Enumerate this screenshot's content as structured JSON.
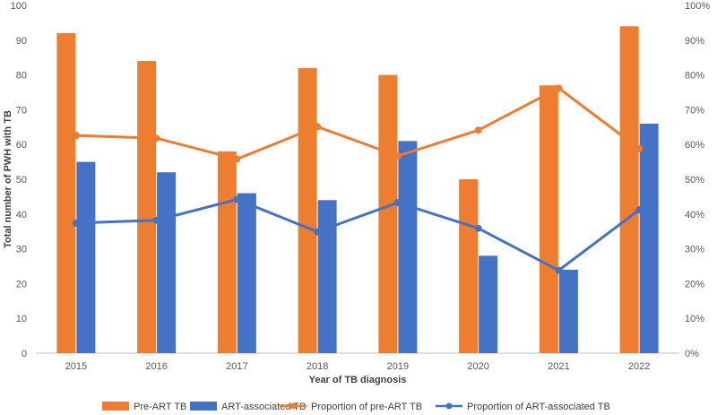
{
  "chart_data": {
    "type": "bar",
    "categories": [
      "2015",
      "2016",
      "2017",
      "2018",
      "2019",
      "2020",
      "2021",
      "2022"
    ],
    "series": [
      {
        "name": "Pre-ART TB",
        "type": "bar",
        "axis": "left",
        "color": "#ED7D31",
        "values": [
          92,
          84,
          58,
          82,
          80,
          50,
          77,
          94
        ]
      },
      {
        "name": "ART-associated TB",
        "type": "bar",
        "axis": "left",
        "color": "#4472C4",
        "values": [
          55,
          52,
          46,
          44,
          61,
          28,
          24,
          66
        ]
      },
      {
        "name": "Proportion of pre-ART TB",
        "type": "line",
        "axis": "right",
        "color": "#ED7D31",
        "values": [
          62.6,
          61.8,
          55.8,
          65.1,
          56.7,
          64.1,
          76.2,
          58.8
        ]
      },
      {
        "name": "Proportion of ART-associated TB",
        "type": "line",
        "axis": "right",
        "color": "#4472C4",
        "values": [
          37.4,
          38.2,
          44.2,
          34.9,
          43.3,
          35.9,
          23.8,
          41.2
        ]
      }
    ],
    "xlabel": "Year of TB diagnosis",
    "ylabel": "Total number of PWH with TB",
    "ylim": [
      0,
      100
    ],
    "y_ticks": [
      "0",
      "10",
      "20",
      "30",
      "40",
      "50",
      "60",
      "70",
      "80",
      "90",
      "100"
    ],
    "y2lim": [
      0,
      100
    ],
    "y2_ticks": [
      "0%",
      "10%",
      "20%",
      "30%",
      "40%",
      "50%",
      "60%",
      "70%",
      "80%",
      "90%",
      "100%"
    ],
    "grid": false,
    "legend_position": "bottom"
  }
}
